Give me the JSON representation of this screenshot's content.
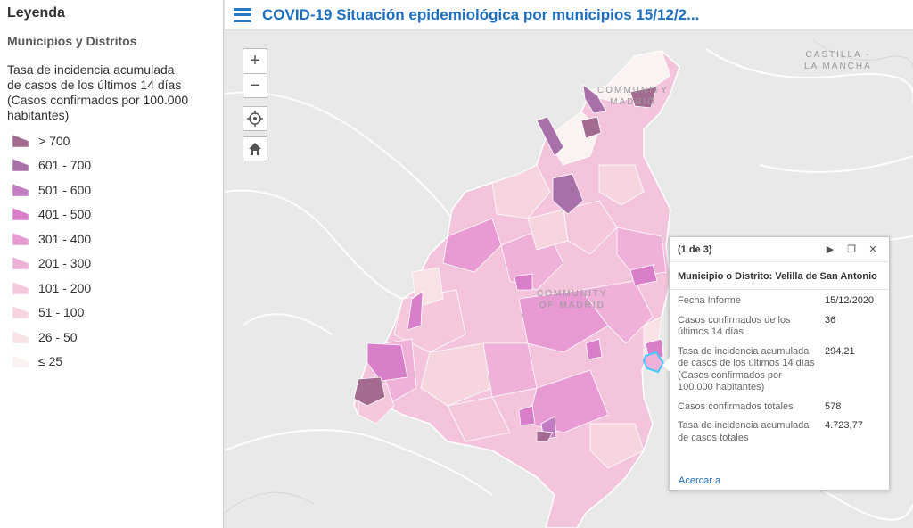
{
  "header": {
    "title": "COVID-19 Situación epidemiológica por municipios 15/12/2..."
  },
  "legend": {
    "title": "Leyenda",
    "layer_name": "Municipios y Distritos",
    "field_label": "Tasa de incidencia acumulada de casos de los últimos 14 días (Casos confirmados por 100.000 habitantes)",
    "classes": [
      {
        "label": "> 700",
        "color": "#a36b8f"
      },
      {
        "label": "601 - 700",
        "color": "#a870a8"
      },
      {
        "label": "501 - 600",
        "color": "#c27ac2"
      },
      {
        "label": "401 - 500",
        "color": "#d97ec9"
      },
      {
        "label": "301 - 400",
        "color": "#e89ad2"
      },
      {
        "label": "201 - 300",
        "color": "#efb1d8"
      },
      {
        "label": "101 - 200",
        "color": "#f4c7dd"
      },
      {
        "label": "51 - 100",
        "color": "#f6d5df"
      },
      {
        "label": "26 - 50",
        "color": "#f8e2e6"
      },
      {
        "label": "≤ 25",
        "color": "#fbf2f2"
      }
    ]
  },
  "map": {
    "labels": {
      "castilla": "CASTILLA -\nLA MANCHA",
      "community_of_madrid": "COMMUNITY\nOF MADRID",
      "community_partial": "COMMUNITY\nMADRID"
    },
    "controls": {
      "zoom_in": "+",
      "zoom_out": "−"
    },
    "icons": [
      "locate-icon",
      "home-icon"
    ]
  },
  "popup": {
    "counter": "(1 de 3)",
    "heading": "Municipio o Distrito: Velilla de San Antonio",
    "rows": [
      {
        "key": "Fecha Informe",
        "value": "15/12/2020"
      },
      {
        "key": "Casos confirmados de los últimos 14 días",
        "value": "36"
      },
      {
        "key": "Tasa de incidencia acumulada de casos de los últimos 14 días (Casos confirmados por 100.000 habitantes)",
        "value": "294,21"
      },
      {
        "key": "Casos confirmados totales",
        "value": "578"
      },
      {
        "key": "Tasa de incidencia acumulada de casos totales",
        "value": "4.723,77"
      }
    ],
    "zoom_link": "Acercar a",
    "highlight_color": "#46c8ff"
  }
}
